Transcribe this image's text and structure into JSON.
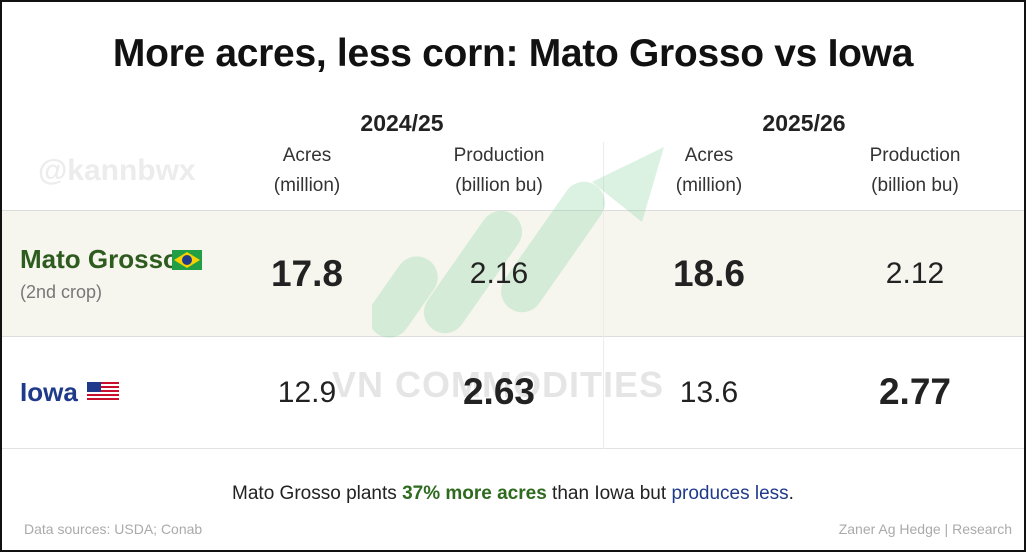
{
  "title": "More acres, less corn: Mato Grosso vs Iowa",
  "watermarks": [
    "@kannbwx",
    "VN COMMODITIES"
  ],
  "periods": [
    "2024/25",
    "2025/26"
  ],
  "columns": [
    {
      "line1": "Acres",
      "line2": "(million)"
    },
    {
      "line1": "Production",
      "line2": "(billion bu)"
    },
    {
      "line1": "Acres",
      "line2": "(million)"
    },
    {
      "line1": "Production",
      "line2": "(billion bu)"
    }
  ],
  "rows": [
    {
      "label": "Mato Grosso",
      "sublabel": "(2nd crop)",
      "values": [
        17.8,
        2.16,
        18.6,
        2.12
      ]
    },
    {
      "label": "Iowa",
      "values": [
        12.9,
        2.63,
        13.6,
        2.77
      ]
    }
  ],
  "footnote": [
    "Mato Grosso plants ",
    "37% more acres",
    " than Iowa but ",
    "produces less",
    "."
  ],
  "sources": "Data sources: USDA; Conab",
  "credit": "Zaner Ag Hedge | Research"
}
